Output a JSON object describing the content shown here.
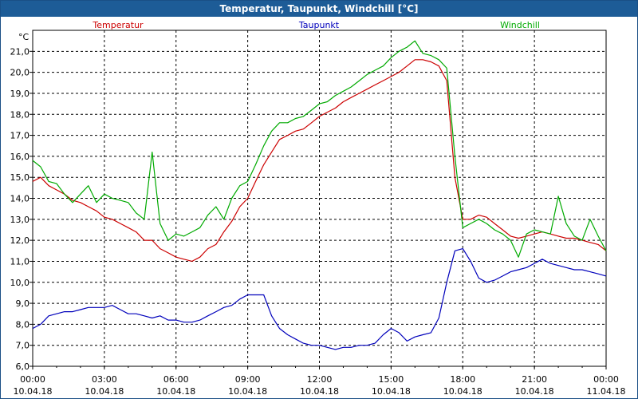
{
  "title": "Temperatur, Taupunkt, Windchill [°C]",
  "chart_data": {
    "type": "line",
    "unit_label": "°C",
    "ylim": [
      6.0,
      22.0
    ],
    "y_ticks": [
      "6,0",
      "7,0",
      "8,0",
      "9,0",
      "10,0",
      "11,0",
      "12,0",
      "13,0",
      "14,0",
      "15,0",
      "16,0",
      "17,0",
      "18,0",
      "19,0",
      "20,0",
      "21,0"
    ],
    "x_range_hours": [
      0,
      24
    ],
    "x_ticks": [
      {
        "time": "00:00",
        "date": "10.04.18"
      },
      {
        "time": "03:00",
        "date": "10.04.18"
      },
      {
        "time": "06:00",
        "date": "10.04.18"
      },
      {
        "time": "09:00",
        "date": "10.04.18"
      },
      {
        "time": "12:00",
        "date": "10.04.18"
      },
      {
        "time": "15:00",
        "date": "10.04.18"
      },
      {
        "time": "18:00",
        "date": "10.04.18"
      },
      {
        "time": "21:00",
        "date": "10.04.18"
      },
      {
        "time": "00:00",
        "date": "11.04.18"
      }
    ],
    "grid": true,
    "series": [
      {
        "name": "Temperatur",
        "color": "#cc0000",
        "x": [
          0,
          0.33,
          0.67,
          1,
          1.33,
          1.67,
          2,
          2.33,
          2.67,
          3,
          3.33,
          3.67,
          4,
          4.33,
          4.67,
          5,
          5.33,
          5.67,
          6,
          6.33,
          6.67,
          7,
          7.33,
          7.67,
          8,
          8.33,
          8.67,
          9,
          9.33,
          9.67,
          10,
          10.33,
          10.67,
          11,
          11.33,
          11.67,
          12,
          12.33,
          12.67,
          13,
          13.33,
          13.67,
          14,
          14.33,
          14.67,
          15,
          15.33,
          15.67,
          16,
          16.33,
          16.67,
          17,
          17.33,
          17.67,
          18,
          18.33,
          18.67,
          19,
          19.33,
          19.67,
          20,
          20.33,
          20.67,
          21,
          21.33,
          21.67,
          22,
          22.33,
          22.67,
          23,
          23.33,
          23.67,
          24
        ],
        "values": [
          14.8,
          15.0,
          14.6,
          14.4,
          14.2,
          13.9,
          13.8,
          13.6,
          13.4,
          13.1,
          13.0,
          12.8,
          12.6,
          12.4,
          12.0,
          12.0,
          11.6,
          11.4,
          11.2,
          11.1,
          11.0,
          11.2,
          11.6,
          11.8,
          12.4,
          12.9,
          13.6,
          14.0,
          14.8,
          15.6,
          16.2,
          16.8,
          17.0,
          17.2,
          17.3,
          17.6,
          17.9,
          18.1,
          18.3,
          18.6,
          18.8,
          19.0,
          19.2,
          19.4,
          19.6,
          19.8,
          20.0,
          20.3,
          20.6,
          20.6,
          20.5,
          20.3,
          19.6,
          15.0,
          13.0,
          13.0,
          13.2,
          13.1,
          12.8,
          12.5,
          12.2,
          12.1,
          12.2,
          12.3,
          12.4,
          12.3,
          12.2,
          12.1,
          12.1,
          12.0,
          11.9,
          11.8,
          11.5
        ]
      },
      {
        "name": "Taupunkt",
        "color": "#0000bb",
        "x": [
          0,
          0.33,
          0.67,
          1,
          1.33,
          1.67,
          2,
          2.33,
          2.67,
          3,
          3.33,
          3.67,
          4,
          4.33,
          4.67,
          5,
          5.33,
          5.67,
          6,
          6.33,
          6.67,
          7,
          7.33,
          7.67,
          8,
          8.33,
          8.67,
          9,
          9.33,
          9.67,
          10,
          10.33,
          10.67,
          11,
          11.33,
          11.67,
          12,
          12.33,
          12.67,
          13,
          13.33,
          13.67,
          14,
          14.33,
          14.67,
          15,
          15.33,
          15.67,
          16,
          16.33,
          16.67,
          17,
          17.33,
          17.67,
          18,
          18.33,
          18.67,
          19,
          19.33,
          19.67,
          20,
          20.33,
          20.67,
          21,
          21.33,
          21.67,
          22,
          22.33,
          22.67,
          23,
          23.33,
          23.67,
          24
        ],
        "values": [
          7.8,
          8.0,
          8.4,
          8.5,
          8.6,
          8.6,
          8.7,
          8.8,
          8.8,
          8.8,
          8.9,
          8.7,
          8.5,
          8.5,
          8.4,
          8.3,
          8.4,
          8.2,
          8.2,
          8.1,
          8.1,
          8.2,
          8.4,
          8.6,
          8.8,
          8.9,
          9.2,
          9.4,
          9.4,
          9.4,
          8.4,
          7.8,
          7.5,
          7.3,
          7.1,
          7.0,
          7.0,
          6.9,
          6.8,
          6.9,
          6.9,
          7.0,
          7.0,
          7.1,
          7.5,
          7.8,
          7.6,
          7.2,
          7.4,
          7.5,
          7.6,
          8.3,
          10.0,
          11.5,
          11.6,
          11.0,
          10.2,
          10.0,
          10.1,
          10.3,
          10.5,
          10.6,
          10.7,
          10.9,
          11.1,
          10.9,
          10.8,
          10.7,
          10.6,
          10.6,
          10.5,
          10.4,
          10.3
        ]
      },
      {
        "name": "Windchill",
        "color": "#00aa00",
        "x": [
          0,
          0.33,
          0.67,
          1,
          1.33,
          1.67,
          2,
          2.33,
          2.67,
          3,
          3.33,
          3.67,
          4,
          4.33,
          4.67,
          5,
          5.33,
          5.67,
          6,
          6.33,
          6.67,
          7,
          7.33,
          7.67,
          8,
          8.33,
          8.67,
          9,
          9.33,
          9.67,
          10,
          10.33,
          10.67,
          11,
          11.33,
          11.67,
          12,
          12.33,
          12.67,
          13,
          13.33,
          13.67,
          14,
          14.33,
          14.67,
          15,
          15.33,
          15.67,
          16,
          16.33,
          16.67,
          17,
          17.33,
          17.67,
          18,
          18.33,
          18.67,
          19,
          19.33,
          19.67,
          20,
          20.33,
          20.67,
          21,
          21.33,
          21.67,
          22,
          22.33,
          22.67,
          23,
          23.33,
          23.67,
          24
        ],
        "values": [
          15.8,
          15.5,
          14.8,
          14.7,
          14.2,
          13.8,
          14.2,
          14.6,
          13.8,
          14.2,
          14.0,
          13.9,
          13.8,
          13.3,
          13.0,
          16.2,
          12.8,
          12.0,
          12.3,
          12.2,
          12.4,
          12.6,
          13.2,
          13.6,
          13.0,
          14.0,
          14.6,
          14.8,
          15.6,
          16.5,
          17.2,
          17.6,
          17.6,
          17.8,
          17.9,
          18.2,
          18.5,
          18.6,
          18.9,
          19.1,
          19.3,
          19.6,
          19.9,
          20.1,
          20.3,
          20.7,
          21.0,
          21.2,
          21.5,
          20.9,
          20.8,
          20.6,
          20.2,
          16.0,
          12.6,
          12.8,
          13.0,
          12.8,
          12.5,
          12.3,
          12.0,
          11.2,
          12.3,
          12.5,
          12.4,
          12.3,
          14.1,
          12.8,
          12.2,
          12.0,
          13.0,
          12.2,
          11.5
        ]
      }
    ]
  }
}
